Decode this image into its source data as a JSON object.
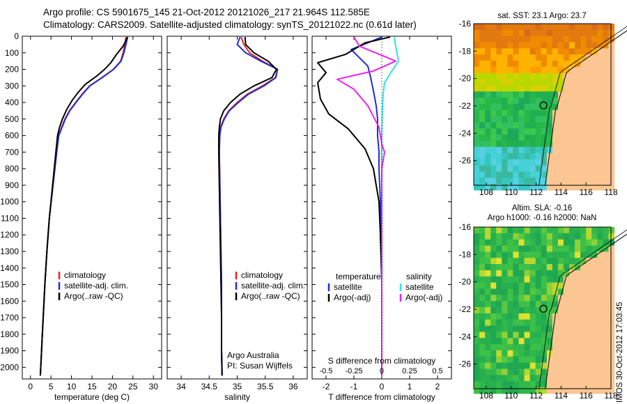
{
  "header": {
    "line1": "Argo profile: CS 5901675_145 21-Oct-2012 20121026_217 21.964S 112.585E",
    "line2": "Climatology: CARS2009. Satellite-adjusted climatology: synTS_20121022.nc (0.61d later)"
  },
  "colors": {
    "climatology": "#e8231b",
    "satellite": "#1e2ed6",
    "argo": "#000000",
    "sat_cyan": "#2fe3e8",
    "argo_magenta": "#ee22ee",
    "land": "#fbc692"
  },
  "chart_data": [
    {
      "type": "line",
      "name": "temperature-profile",
      "xlabel": "temperature (deg C)",
      "ylabel": "",
      "xlim": [
        -2,
        32
      ],
      "ylim": [
        2070,
        0
      ],
      "xticks": [
        "0",
        "5",
        "10",
        "15",
        "20",
        "25",
        "30"
      ],
      "yticks": [
        "0",
        "100",
        "200",
        "300",
        "400",
        "500",
        "600",
        "700",
        "800",
        "900",
        "1000",
        "1100",
        "1200",
        "1300",
        "1400",
        "1500",
        "1600",
        "1700",
        "1800",
        "1900",
        "2000"
      ],
      "legend": {
        "position": "lower-center",
        "entries": [
          "climatology",
          "satellite-adj. clim.",
          "Argo(..raw -QC)"
        ]
      },
      "series": [
        {
          "name": "climatology",
          "color": "climatology",
          "x": [
            23.3,
            23.0,
            22.6,
            22.0,
            20.2,
            17.4,
            14.4,
            12.6,
            11.0,
            9.5,
            8.4,
            7.6,
            6.8,
            6.4,
            5.5,
            4.6,
            4.0,
            3.5,
            3.1,
            2.8,
            2.6,
            2.5,
            2.4
          ],
          "y": [
            5,
            50,
            100,
            150,
            200,
            250,
            300,
            350,
            400,
            450,
            500,
            550,
            600,
            700,
            900,
            1100,
            1300,
            1500,
            1700,
            1850,
            1950,
            2000,
            2050
          ]
        },
        {
          "name": "satellite-adj. clim.",
          "color": "satellite",
          "x": [
            23.7,
            23.3,
            22.8,
            22.1,
            20.3,
            17.5,
            14.5,
            12.7,
            11.1,
            9.6,
            8.5,
            7.7,
            6.9,
            6.4,
            5.5,
            4.6,
            4.0,
            3.5,
            3.1,
            2.8,
            2.6,
            2.5,
            2.4
          ],
          "y": [
            5,
            50,
            100,
            150,
            200,
            250,
            300,
            350,
            400,
            450,
            500,
            550,
            600,
            700,
            900,
            1100,
            1300,
            1500,
            1700,
            1850,
            1950,
            2000,
            2050
          ]
        },
        {
          "name": "Argo(..raw -QC)",
          "color": "argo",
          "x": [
            23.7,
            22.6,
            21.0,
            19.6,
            18.1,
            16.2,
            13.4,
            11.6,
            10.1,
            8.9,
            7.8,
            7.1,
            6.6,
            6.2,
            5.4,
            4.6,
            4.0,
            3.5,
            3.1,
            2.8,
            2.6,
            2.5,
            2.4
          ],
          "y": [
            5,
            60,
            110,
            160,
            200,
            240,
            290,
            340,
            390,
            440,
            500,
            550,
            600,
            700,
            900,
            1100,
            1300,
            1500,
            1700,
            1850,
            1950,
            2000,
            2050
          ]
        }
      ]
    },
    {
      "type": "line",
      "name": "salinity-profile",
      "xlabel": "salinity",
      "ylabel": "",
      "xlim": [
        33.75,
        36.25
      ],
      "ylim": [
        2070,
        0
      ],
      "xticks": [
        "34",
        "34.5",
        "35",
        "35.5",
        "36"
      ],
      "legend": {
        "position": "lower-center",
        "entries": [
          "climatology",
          "satellite-adj. clim.",
          "Argo(..raw -QC)"
        ]
      },
      "annotation": [
        "Argo Australia",
        "PI: Susan Wijffels"
      ],
      "series": [
        {
          "name": "climatology",
          "color": "climatology",
          "x": [
            35.07,
            35.12,
            35.22,
            35.45,
            35.72,
            35.68,
            35.45,
            35.18,
            35.0,
            34.85,
            34.76,
            34.7,
            34.68,
            34.68,
            34.69,
            34.7,
            34.71,
            34.72,
            34.72,
            34.72,
            34.73
          ],
          "y": [
            5,
            50,
            100,
            150,
            200,
            250,
            300,
            350,
            400,
            450,
            500,
            550,
            600,
            700,
            900,
            1100,
            1300,
            1500,
            1700,
            1900,
            2050
          ]
        },
        {
          "name": "satellite-adj. clim.",
          "color": "satellite",
          "x": [
            35.05,
            35.0,
            35.15,
            35.42,
            35.72,
            35.69,
            35.48,
            35.2,
            35.02,
            34.86,
            34.77,
            34.71,
            34.69,
            34.68,
            34.69,
            34.7,
            34.71,
            34.72,
            34.72,
            34.72,
            34.73
          ],
          "y": [
            5,
            50,
            100,
            150,
            200,
            250,
            300,
            350,
            400,
            450,
            500,
            550,
            600,
            700,
            900,
            1100,
            1300,
            1500,
            1700,
            1900,
            2050
          ]
        },
        {
          "name": "Argo(..raw -QC)",
          "color": "argo",
          "x": [
            35.14,
            35.15,
            35.3,
            35.55,
            35.7,
            35.62,
            35.3,
            35.05,
            34.88,
            34.76,
            34.7,
            34.68,
            34.67,
            34.67,
            34.68,
            34.69,
            34.7,
            34.71,
            34.72,
            34.72,
            34.73
          ],
          "y": [
            5,
            50,
            100,
            150,
            200,
            250,
            300,
            350,
            400,
            450,
            500,
            550,
            600,
            700,
            900,
            1100,
            1300,
            1500,
            1700,
            1900,
            2050
          ]
        }
      ]
    },
    {
      "type": "line",
      "name": "difference-profile",
      "xlabel": "T difference from climatology",
      "title_top": "S difference from climatology",
      "xlim": [
        -2.5,
        2.5
      ],
      "ylim": [
        2070,
        0
      ],
      "xticks": [
        "-2",
        "-1",
        "0",
        "1",
        "2"
      ],
      "xticks_top": [
        "-0.5",
        "-0.25",
        "0",
        "0.25",
        "0.5"
      ],
      "legend": {
        "position": "lower",
        "temperature_title": "temperature",
        "salinity_title": "salinity",
        "entries": [
          "satellite",
          "Argo(-adj)",
          "satellite",
          "Argo(-adj)"
        ]
      },
      "series": [
        {
          "name": "T satellite",
          "color": "satellite",
          "x": [
            0.0,
            -0.5,
            -1.1,
            -0.8,
            -0.5,
            -0.4,
            -0.3,
            -0.2,
            -0.15,
            -0.15,
            -0.1,
            -0.1,
            -0.05,
            -0.05,
            0,
            0
          ],
          "y": [
            5,
            40,
            80,
            130,
            180,
            250,
            330,
            420,
            500,
            600,
            700,
            800,
            1000,
            1200,
            1500,
            2050
          ]
        },
        {
          "name": "T Argo(-adj)",
          "color": "argo",
          "x": [
            0.3,
            -0.6,
            -1.3,
            -2.3,
            -2.0,
            -2.3,
            -2.2,
            -1.9,
            -1.2,
            -0.6,
            -0.3,
            -0.2,
            -0.1,
            -0.05,
            0,
            0
          ],
          "y": [
            5,
            40,
            110,
            160,
            220,
            280,
            380,
            470,
            560,
            680,
            800,
            900,
            1000,
            1200,
            1450,
            2050
          ]
        },
        {
          "name": "S satellite",
          "color": "sat_cyan",
          "x": [
            0.45,
            0.5,
            0.6,
            0.4,
            0.1,
            0.05,
            0.02,
            0.0,
            0.0,
            0.0,
            0.0,
            0.0
          ],
          "y": [
            5,
            60,
            150,
            200,
            280,
            350,
            450,
            600,
            800,
            1000,
            1500,
            2050
          ]
        },
        {
          "name": "S Argo(-adj)",
          "color": "argo_magenta",
          "x": [
            -1.0,
            -0.8,
            0.5,
            -0.3,
            -1.6,
            -1.0,
            -0.5,
            -0.1,
            0.0,
            0.1,
            0.0,
            0.0,
            0.0
          ],
          "y": [
            5,
            60,
            150,
            210,
            260,
            320,
            420,
            550,
            650,
            700,
            800,
            1200,
            2050
          ]
        }
      ]
    },
    {
      "type": "heatmap",
      "name": "sst-map",
      "title": "sat. SST: 23.1  Argo: 23.7",
      "xlim": [
        107,
        118
      ],
      "ylim": [
        -27.8,
        -16
      ],
      "xticks": [
        "108",
        "110",
        "112",
        "114",
        "116",
        "118"
      ],
      "yticks": [
        "-16",
        "-18",
        "-20",
        "-22",
        "-24",
        "-26"
      ],
      "marker": {
        "lon": 112.585,
        "lat": -21.964
      }
    },
    {
      "type": "heatmap",
      "name": "sla-map",
      "title_lines": [
        "Altim. SLA: -0.16",
        "Argo h1000: -0.16  h2000: NaN"
      ],
      "xlim": [
        107,
        118
      ],
      "ylim": [
        -27.8,
        -16
      ],
      "xticks": [
        "108",
        "110",
        "112",
        "114",
        "116",
        "118"
      ],
      "yticks": [
        "-16",
        "-18",
        "-20",
        "-22",
        "-24",
        "-26"
      ],
      "marker": {
        "lon": 112.585,
        "lat": -21.964
      }
    }
  ],
  "footer": {
    "stamp": "IMOS 30-Oct-2012 17:03:45"
  }
}
